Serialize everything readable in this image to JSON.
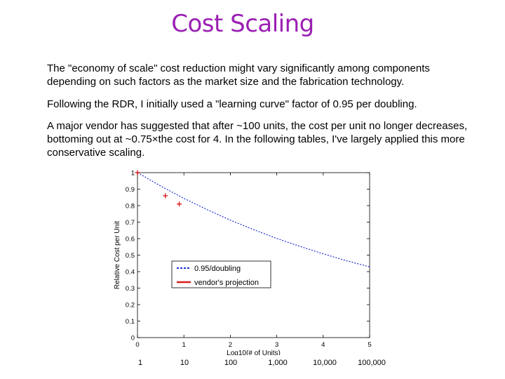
{
  "slide": {
    "title": "Cost Scaling",
    "paragraphs": [
      "The \"economy of scale\" cost reduction might vary significantly among components depending on such factors as the market size and the fabrication technology.",
      "Following the RDR, I initially used a \"learning curve\" factor of 0.95 per doubling.",
      "A major vendor has suggested that after ~100 units, the cost per unit no longer decreases, bottoming out at ~0.75×the cost for 4.  In the following tables, I've largely applied this more conservative scaling."
    ],
    "unit_labels": [
      "1",
      "10",
      "100",
      "1,000",
      "10,000",
      "100,000"
    ]
  },
  "chart_data": {
    "type": "line",
    "xlabel": "Log10(# of Units)",
    "ylabel": "Relative Cost per Unit",
    "xlim": [
      0,
      5
    ],
    "ylim": [
      0,
      1
    ],
    "x_ticks": [
      "0",
      "1",
      "2",
      "3",
      "4",
      "5"
    ],
    "y_ticks": [
      "0",
      "0.1",
      "0.2",
      "0.3",
      "0.4",
      "0.5",
      "0.6",
      "0.7",
      "0.8",
      "0.9",
      "1"
    ],
    "grid": false,
    "legend_position": "lower-center",
    "series": [
      {
        "name": "0.95/doubling",
        "style": "dashed",
        "color": "#1f2fd6",
        "points": [
          [
            0,
            1.0
          ],
          [
            0.5,
            0.919
          ],
          [
            1,
            0.844
          ],
          [
            1.5,
            0.776
          ],
          [
            2,
            0.712
          ],
          [
            2.5,
            0.655
          ],
          [
            3,
            0.601
          ],
          [
            3.5,
            0.553
          ],
          [
            4,
            0.508
          ],
          [
            4.5,
            0.466
          ],
          [
            5,
            0.429
          ]
        ]
      },
      {
        "name": "vendor's projection",
        "style": "markers",
        "color": "#d81e1e",
        "marker": "+",
        "points": [
          [
            0,
            1.0
          ],
          [
            0.6,
            0.86
          ],
          [
            0.9,
            0.81
          ]
        ]
      }
    ]
  }
}
